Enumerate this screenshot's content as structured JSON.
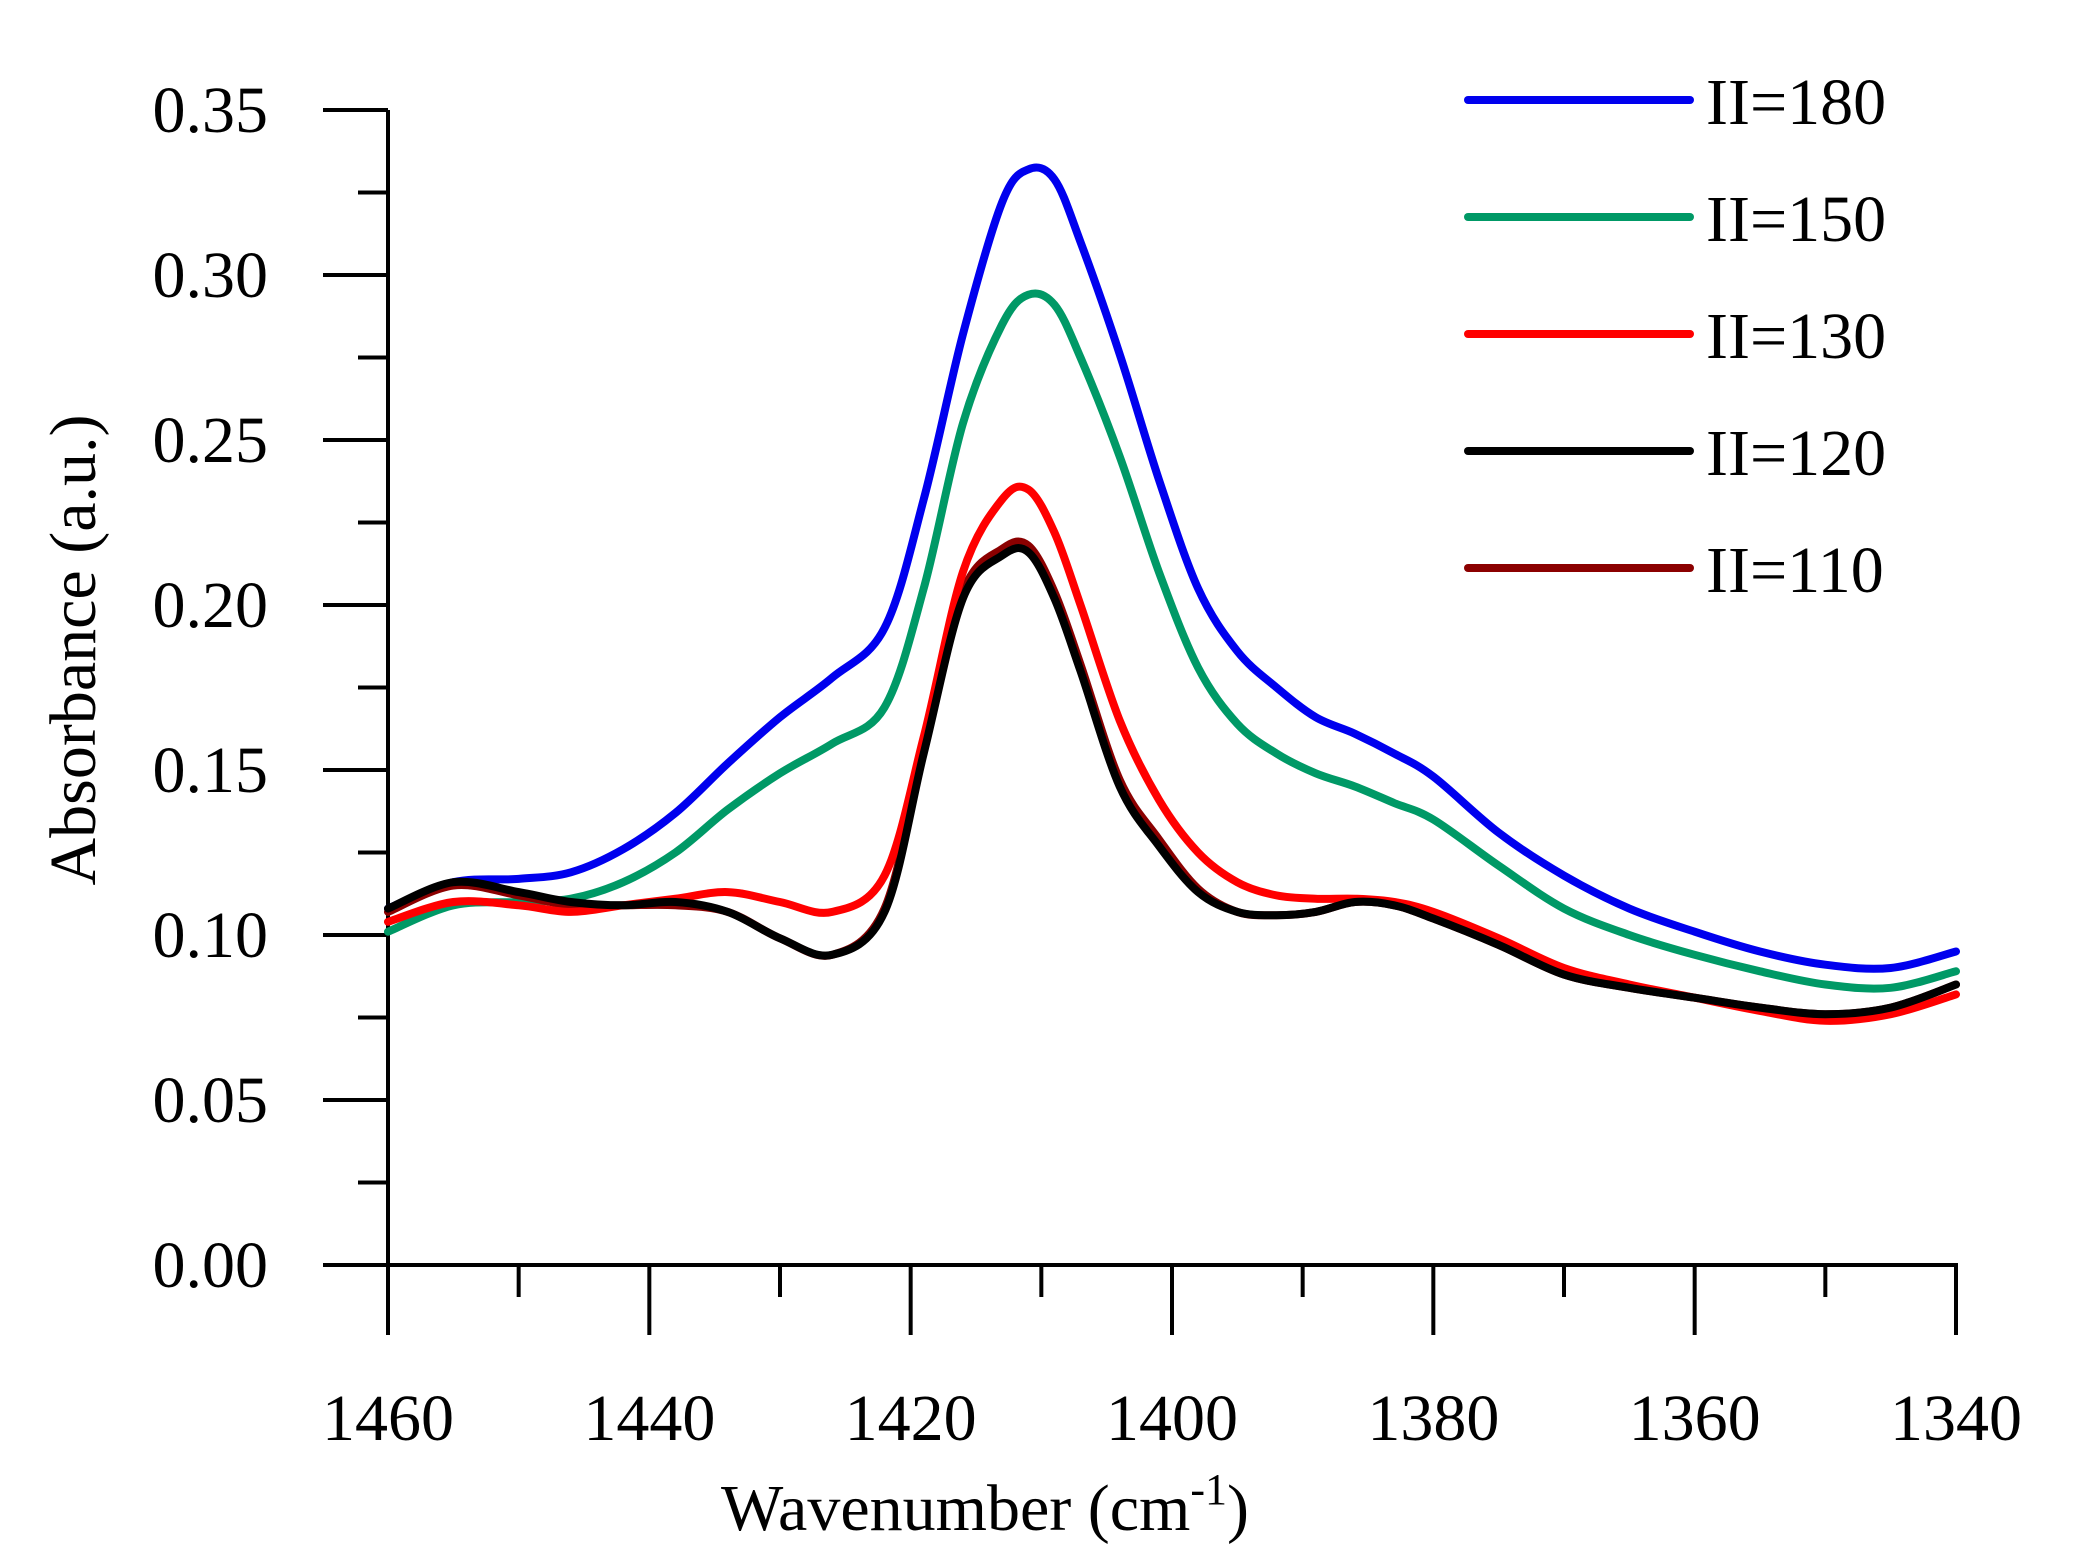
{
  "chart_data": {
    "type": "line",
    "title": "",
    "xlabel": "Wavenumber (cm",
    "xlabel_superscript": "-1",
    "xlabel_suffix": ")",
    "ylabel": "Absorbance (a.u.)",
    "xlim": [
      1460,
      1340
    ],
    "ylim": [
      0,
      0.35
    ],
    "x_reversed": true,
    "x_ticks": [
      "1460",
      "1440",
      "1420",
      "1400",
      "1380",
      "1360",
      "1340"
    ],
    "y_ticks": [
      "0.00",
      "0.05",
      "0.10",
      "0.15",
      "0.20",
      "0.25",
      "0.30",
      "0.35"
    ],
    "legend_position": "top-right",
    "grid": false,
    "x": [
      1460,
      1455,
      1450,
      1446,
      1442,
      1438,
      1434,
      1430,
      1426,
      1422,
      1419,
      1416,
      1413,
      1411,
      1409,
      1407,
      1404,
      1401,
      1398,
      1395,
      1392,
      1389,
      1386,
      1383,
      1380,
      1375,
      1370,
      1365,
      1360,
      1355,
      1350,
      1345,
      1340
    ],
    "series": [
      {
        "name": "II=180",
        "color": "#0000ee",
        "values": [
          0.108,
          0.116,
          0.117,
          0.119,
          0.126,
          0.137,
          0.152,
          0.166,
          0.178,
          0.193,
          0.232,
          0.282,
          0.322,
          0.332,
          0.329,
          0.31,
          0.276,
          0.238,
          0.205,
          0.186,
          0.175,
          0.166,
          0.161,
          0.155,
          0.148,
          0.131,
          0.118,
          0.108,
          0.101,
          0.095,
          0.091,
          0.09,
          0.095
        ]
      },
      {
        "name": "II=150",
        "color": "#009966",
        "values": [
          0.101,
          0.109,
          0.11,
          0.111,
          0.116,
          0.125,
          0.138,
          0.149,
          0.158,
          0.169,
          0.205,
          0.255,
          0.285,
          0.294,
          0.291,
          0.275,
          0.245,
          0.21,
          0.181,
          0.164,
          0.155,
          0.149,
          0.145,
          0.14,
          0.135,
          0.121,
          0.108,
          0.1,
          0.094,
          0.089,
          0.085,
          0.084,
          0.089
        ]
      },
      {
        "name": "II=130",
        "color": "#ff0000",
        "values": [
          0.104,
          0.11,
          0.109,
          0.107,
          0.109,
          0.111,
          0.113,
          0.11,
          0.107,
          0.118,
          0.16,
          0.21,
          0.232,
          0.235,
          0.222,
          0.2,
          0.165,
          0.141,
          0.125,
          0.116,
          0.112,
          0.111,
          0.111,
          0.11,
          0.107,
          0.099,
          0.09,
          0.085,
          0.081,
          0.077,
          0.074,
          0.076,
          0.082
        ]
      },
      {
        "name": "II=120",
        "color": "#000000",
        "values": [
          0.108,
          0.116,
          0.113,
          0.11,
          0.109,
          0.11,
          0.107,
          0.099,
          0.094,
          0.107,
          0.155,
          0.202,
          0.215,
          0.216,
          0.202,
          0.18,
          0.145,
          0.127,
          0.113,
          0.107,
          0.106,
          0.107,
          0.11,
          0.109,
          0.105,
          0.097,
          0.088,
          0.084,
          0.081,
          0.078,
          0.076,
          0.078,
          0.085
        ]
      },
      {
        "name": "II=110",
        "color": "#8b0000",
        "values": [
          0.107,
          0.115,
          0.112,
          0.109,
          0.109,
          0.109,
          0.107,
          0.099,
          0.094,
          0.108,
          0.157,
          0.204,
          0.217,
          0.218,
          0.204,
          0.182,
          0.147,
          0.129,
          0.114,
          0.107,
          0.106,
          0.107,
          0.11,
          0.109,
          0.105,
          0.097,
          0.088,
          0.084,
          0.081,
          0.078,
          0.076,
          0.078,
          0.085
        ]
      }
    ]
  }
}
